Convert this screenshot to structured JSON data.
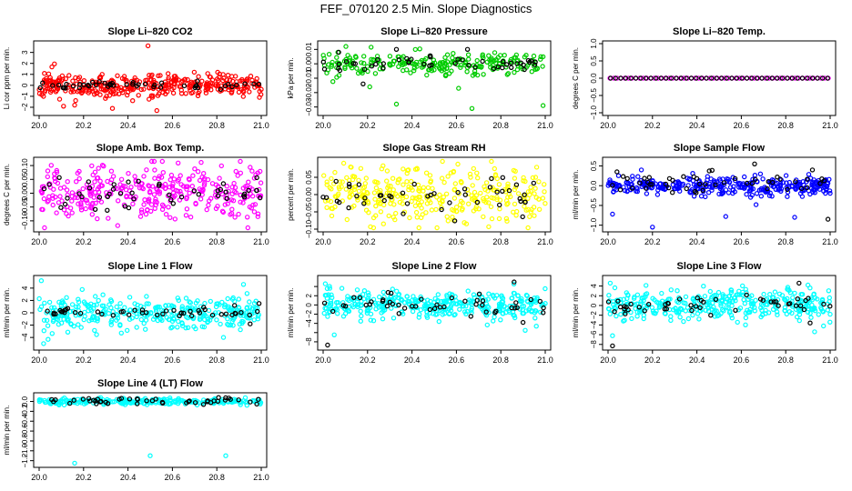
{
  "figure": {
    "title": "FEF_070120  2.5 Min. Slope Diagnostics"
  },
  "colors": {
    "axis": "#000000",
    "black_points": "#000000",
    "co2": "#ff0000",
    "pressure": "#00cc00",
    "temp": "#ff00ff",
    "box_temp": "#ff00ff",
    "rh": "#ffff00",
    "sample_flow": "#0000ff",
    "line_flow": "#00ffff"
  },
  "chart_data": [
    {
      "type": "scatter",
      "title": "Slope Li–820 CO2",
      "ylabel": "Li cor ppm per min.",
      "xlim": [
        20.0,
        21.0
      ],
      "ylim": [
        -2.5,
        3.8
      ],
      "xticks": [
        20.0,
        20.2,
        20.4,
        20.6,
        20.8,
        21.0
      ],
      "xticklabels": [
        "20.0",
        "20.2",
        "20.4",
        "20.6",
        "20.8",
        "21.0"
      ],
      "yticks": [
        -2,
        -1,
        0,
        1,
        2,
        3
      ],
      "yticklabels": [
        "−2",
        "−1",
        "0",
        "1",
        "2",
        "3"
      ],
      "series": [
        {
          "name": "all",
          "color": "#ff0000",
          "gen": {
            "seed": 11,
            "n": 360,
            "center": 0.0,
            "spread": 0.55,
            "outliers": [
              [
                20.49,
                3.6
              ],
              [
                20.53,
                -2.3
              ],
              [
                20.33,
                -2.1
              ],
              [
                20.11,
                -1.9
              ],
              [
                20.16,
                -1.8
              ]
            ]
          }
        },
        {
          "name": "selected",
          "color": "#000000",
          "gen": {
            "seed": 12,
            "n": 48,
            "center": 0.0,
            "spread": 0.2,
            "outliers": []
          }
        }
      ]
    },
    {
      "type": "scatter",
      "title": "Slope Li–820 Pressure",
      "ylabel": "kPa per min.",
      "xlim": [
        20.0,
        21.0
      ],
      "ylim": [
        -0.034,
        0.014
      ],
      "xticks": [
        20.0,
        20.2,
        20.4,
        20.6,
        20.8,
        21.0
      ],
      "xticklabels": [
        "20.0",
        "20.2",
        "20.4",
        "20.6",
        "20.8",
        "21.0"
      ],
      "yticks": [
        -0.03,
        -0.02,
        -0.01,
        0.0,
        0.01
      ],
      "yticklabels": [
        "−0.03",
        "−0.02",
        "−0.01",
        "0.00",
        "0.01"
      ],
      "series": [
        {
          "name": "all",
          "color": "#00cc00",
          "gen": {
            "seed": 21,
            "n": 240,
            "center": 0.0,
            "spread": 0.004,
            "outliers": [
              [
                20.33,
                -0.028
              ],
              [
                20.67,
                -0.031
              ],
              [
                20.99,
                -0.029
              ],
              [
                20.61,
                -0.017
              ],
              [
                20.21,
                -0.016
              ]
            ]
          }
        },
        {
          "name": "selected",
          "color": "#000000",
          "gen": {
            "seed": 22,
            "n": 46,
            "center": 0.0,
            "spread": 0.0025,
            "outliers": [
              [
                20.33,
                0.01
              ],
              [
                20.65,
                0.01
              ],
              [
                20.07,
                0.008
              ],
              [
                20.18,
                -0.014
              ]
            ]
          }
        }
      ]
    },
    {
      "type": "scatter",
      "title": "Slope Li–820 Temp.",
      "ylabel": "degrees C per min.",
      "xlim": [
        20.0,
        21.0
      ],
      "ylim": [
        -1.0,
        1.0
      ],
      "xticks": [
        20.0,
        20.2,
        20.4,
        20.6,
        20.8,
        21.0
      ],
      "xticklabels": [
        "20.0",
        "20.2",
        "20.4",
        "20.6",
        "20.8",
        "21.0"
      ],
      "yticks": [
        -1.0,
        -0.5,
        0.0,
        0.5,
        1.0
      ],
      "yticklabels": [
        "−1.0",
        "−0.5",
        "0.0",
        "0.5",
        "1.0"
      ],
      "series": [
        {
          "name": "all",
          "color": "#ff00ff",
          "gen": {
            "seed": 31,
            "n": 60,
            "center": 0.0,
            "spread": 0.0,
            "outliers": [],
            "regular": true
          }
        },
        {
          "name": "selected",
          "color": "#000000",
          "gen": {
            "seed": 32,
            "n": 44,
            "center": 0.0,
            "spread": 0.0,
            "outliers": [],
            "regular": true
          }
        }
      ]
    },
    {
      "type": "scatter",
      "title": "Slope Amb. Box Temp.",
      "ylabel": "degrees C per min.",
      "xlim": [
        20.0,
        21.0
      ],
      "ylim": [
        -0.13,
        0.12
      ],
      "xticks": [
        20.0,
        20.2,
        20.4,
        20.6,
        20.8,
        21.0
      ],
      "xticklabels": [
        "20.0",
        "20.2",
        "20.4",
        "20.6",
        "20.8",
        "21.0"
      ],
      "yticks": [
        -0.1,
        -0.05,
        0.0,
        0.05,
        0.1
      ],
      "yticklabels": [
        "−0.10",
        "−0.05",
        "0.00",
        "0.05",
        "0.10"
      ],
      "series": [
        {
          "name": "all",
          "color": "#ff00ff",
          "gen": {
            "seed": 41,
            "n": 340,
            "center": 0.0,
            "spread": 0.05,
            "outliers": []
          }
        },
        {
          "name": "selected",
          "color": "#000000",
          "gen": {
            "seed": 42,
            "n": 46,
            "center": 0.0,
            "spread": 0.03,
            "outliers": []
          }
        }
      ]
    },
    {
      "type": "scatter",
      "title": "Slope Gas Stream RH",
      "ylabel": "percent per min.",
      "xlim": [
        20.0,
        21.0
      ],
      "ylim": [
        -0.1,
        0.1
      ],
      "xticks": [
        20.0,
        20.2,
        20.4,
        20.6,
        20.8,
        21.0
      ],
      "xticklabels": [
        "20.0",
        "20.2",
        "20.4",
        "20.6",
        "20.8",
        "21.0"
      ],
      "yticks": [
        -0.1,
        -0.05,
        0.0,
        0.05
      ],
      "yticklabels": [
        "−0.10",
        "−0.05",
        "0.00",
        "0.05"
      ],
      "series": [
        {
          "name": "all",
          "color": "#ffff00",
          "gen": {
            "seed": 51,
            "n": 340,
            "center": 0.0,
            "spread": 0.04,
            "outliers": []
          }
        },
        {
          "name": "selected",
          "color": "#000000",
          "gen": {
            "seed": 52,
            "n": 46,
            "center": 0.0,
            "spread": 0.03,
            "outliers": []
          }
        }
      ]
    },
    {
      "type": "scatter",
      "title": "Slope Sample Flow",
      "ylabel": "ml/min per min.",
      "xlim": [
        20.0,
        21.0
      ],
      "ylim": [
        -1.1,
        0.65
      ],
      "xticks": [
        20.0,
        20.2,
        20.4,
        20.6,
        20.8,
        21.0
      ],
      "xticklabels": [
        "20.0",
        "20.2",
        "20.4",
        "20.6",
        "20.8",
        "21.0"
      ],
      "yticks": [
        -1.0,
        -0.5,
        0.0,
        0.5
      ],
      "yticklabels": [
        "−1.0",
        "−0.5",
        "0.0",
        "0.5"
      ],
      "series": [
        {
          "name": "all",
          "color": "#0000ff",
          "gen": {
            "seed": 61,
            "n": 340,
            "center": 0.0,
            "spread": 0.12,
            "outliers": [
              [
                20.02,
                -0.72
              ],
              [
                20.2,
                -1.05
              ],
              [
                20.53,
                -0.78
              ],
              [
                20.84,
                -0.8
              ],
              [
                20.15,
                0.4
              ]
            ]
          }
        },
        {
          "name": "selected",
          "color": "#000000",
          "gen": {
            "seed": 62,
            "n": 46,
            "center": 0.05,
            "spread": 0.15,
            "outliers": [
              [
                20.66,
                0.55
              ],
              [
                20.92,
                0.4
              ],
              [
                20.99,
                -0.85
              ],
              [
                20.04,
                0.35
              ],
              [
                20.4,
                0.18
              ]
            ]
          }
        }
      ]
    },
    {
      "type": "scatter",
      "title": "Slope Line 1 Flow",
      "ylabel": "ml/min per min.",
      "xlim": [
        20.0,
        21.0
      ],
      "ylim": [
        -5.6,
        5.6
      ],
      "xticks": [
        20.0,
        20.2,
        20.4,
        20.6,
        20.8,
        21.0
      ],
      "xticklabels": [
        "20.0",
        "20.2",
        "20.4",
        "20.6",
        "20.8",
        "21.0"
      ],
      "yticks": [
        -4,
        -2,
        0,
        2,
        4
      ],
      "yticklabels": [
        "−4",
        "−2",
        "0",
        "2",
        "4"
      ],
      "series": [
        {
          "name": "all",
          "color": "#00ffff",
          "gen": {
            "seed": 71,
            "n": 340,
            "center": 0.0,
            "spread": 1.3,
            "outliers": [
              [
                20.02,
                -5.0
              ],
              [
                20.04,
                -4.3
              ],
              [
                20.01,
                5.2
              ],
              [
                20.92,
                4.6
              ],
              [
                20.83,
                -4.0
              ]
            ]
          }
        },
        {
          "name": "selected",
          "color": "#000000",
          "gen": {
            "seed": 72,
            "n": 46,
            "center": 0.0,
            "spread": 0.3,
            "outliers": [
              [
                20.95,
                -1.8
              ],
              [
                20.99,
                1.5
              ],
              [
                20.88,
                1.2
              ]
            ]
          }
        }
      ]
    },
    {
      "type": "scatter",
      "title": "Slope Line 2 Flow",
      "ylabel": "ml/min per min.",
      "xlim": [
        20.0,
        21.0
      ],
      "ylim": [
        -9.2,
        5.8
      ],
      "xticks": [
        20.0,
        20.2,
        20.4,
        20.6,
        20.8,
        21.0
      ],
      "xticklabels": [
        "20.0",
        "20.2",
        "20.4",
        "20.6",
        "20.8",
        "21.0"
      ],
      "yticks": [
        -8,
        -6,
        -4,
        -2,
        0,
        2,
        4
      ],
      "yticklabels": [
        "−8",
        "",
        "−4",
        "−2",
        "0",
        "2",
        ""
      ],
      "series": [
        {
          "name": "all",
          "color": "#00ffff",
          "gen": {
            "seed": 81,
            "n": 360,
            "center": 0.0,
            "spread": 1.5,
            "outliers": [
              [
                20.01,
                4.6
              ],
              [
                20.03,
                3.6
              ],
              [
                20.91,
                -5.5
              ],
              [
                20.96,
                -4.6
              ],
              [
                20.05,
                -6.5
              ]
            ]
          }
        },
        {
          "name": "selected",
          "color": "#000000",
          "gen": {
            "seed": 82,
            "n": 46,
            "center": 0.0,
            "spread": 1.0,
            "outliers": [
              [
                20.02,
                -8.7
              ],
              [
                20.86,
                5.0
              ],
              [
                20.9,
                -3.8
              ]
            ]
          }
        }
      ]
    },
    {
      "type": "scatter",
      "title": "Slope Line 3 Flow",
      "ylabel": "ml/min per min.",
      "xlim": [
        20.0,
        21.0
      ],
      "ylim": [
        -8.6,
        5.6
      ],
      "xticks": [
        20.0,
        20.2,
        20.4,
        20.6,
        20.8,
        21.0
      ],
      "xticklabels": [
        "20.0",
        "20.2",
        "20.4",
        "20.6",
        "20.8",
        "21.0"
      ],
      "yticks": [
        -8,
        -6,
        -4,
        -2,
        0,
        2,
        4
      ],
      "yticklabels": [
        "−8",
        "−6",
        "−4",
        "−2",
        "0",
        "2",
        "4"
      ],
      "series": [
        {
          "name": "all",
          "color": "#00ffff",
          "gen": {
            "seed": 91,
            "n": 360,
            "center": 0.0,
            "spread": 1.6,
            "outliers": [
              [
                20.01,
                4.6
              ],
              [
                20.02,
                -6.2
              ],
              [
                20.9,
                4.2
              ],
              [
                20.93,
                -5.4
              ],
              [
                20.97,
                -4.2
              ]
            ]
          }
        },
        {
          "name": "selected",
          "color": "#000000",
          "gen": {
            "seed": 92,
            "n": 46,
            "center": 0.0,
            "spread": 1.0,
            "outliers": [
              [
                20.02,
                -8.3
              ],
              [
                20.86,
                4.6
              ],
              [
                20.91,
                -3.6
              ]
            ]
          }
        }
      ]
    },
    {
      "type": "scatter",
      "title": "Slope Line 4 (LT) Flow",
      "ylabel": "ml/min per min.",
      "xlim": [
        20.0,
        21.0
      ],
      "ylim": [
        -1.28,
        0.12
      ],
      "xticks": [
        20.0,
        20.2,
        20.4,
        20.6,
        20.8,
        21.0
      ],
      "xticklabels": [
        "20.0",
        "20.2",
        "20.4",
        "20.6",
        "20.8",
        "21.0"
      ],
      "yticks": [
        -1.2,
        -1.0,
        -0.8,
        -0.6,
        -0.4,
        -0.2,
        0.0
      ],
      "yticklabels": [
        "−1.2",
        "−1.0",
        "−0.8",
        "−0.6",
        "−0.4",
        "−0.2",
        "0.0"
      ],
      "series": [
        {
          "name": "all",
          "color": "#00ffff",
          "gen": {
            "seed": 101,
            "n": 260,
            "center": 0.0,
            "spread": 0.03,
            "outliers": [
              [
                20.16,
                -1.25
              ],
              [
                20.5,
                -1.1
              ],
              [
                20.84,
                -1.1
              ]
            ]
          }
        },
        {
          "name": "selected",
          "color": "#000000",
          "gen": {
            "seed": 102,
            "n": 46,
            "center": 0.01,
            "spread": 0.03,
            "outliers": []
          }
        }
      ]
    }
  ]
}
